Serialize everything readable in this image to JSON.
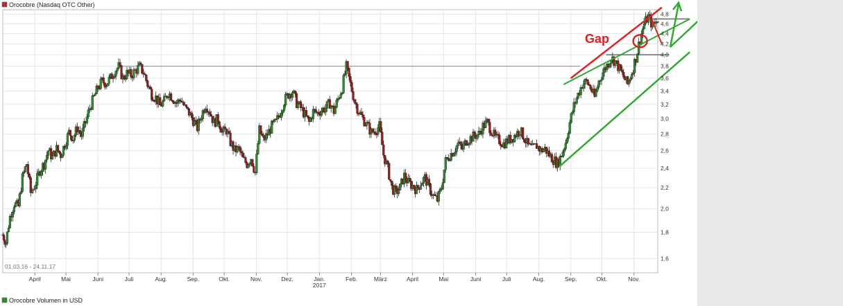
{
  "chart_title": "Orocobre (Nasdaq OTC Other)",
  "volume_title": "Orocobre Volumen in USD",
  "date_range": "01.03.16 - 24.11.17",
  "annotation_gap": "Gap",
  "colors": {
    "up_candle": "#2e8b2e",
    "down_candle": "#a01818",
    "resistance_red": "#e02020",
    "support_green": "#2eaa2e",
    "level_gray": "#888888",
    "grid": "#e6e6e6",
    "right_panel": "#e8e8e8"
  },
  "chart_data": {
    "type": "line",
    "price_style": "candlestick",
    "y_scale": "log",
    "ylim": [
      1.5,
      4.9
    ],
    "yticks": [
      1.6,
      1.8,
      2.0,
      2.2,
      2.4,
      2.6,
      2.8,
      3.0,
      3.2,
      3.4,
      3.6,
      3.8,
      4.0,
      4.2,
      4.4,
      4.6,
      4.8
    ],
    "ytick_labels": [
      "1,6",
      "1,8",
      "2,0",
      "2,2",
      "2,4",
      "2,6",
      "2,8",
      "3,0",
      "3,2",
      "3,4",
      "3,6",
      "3,8",
      "4,0",
      "4,2",
      "4,4",
      "4,6",
      "4,8"
    ],
    "xlim": [
      "2016-03-01",
      "2017-11-24"
    ],
    "xticks": [
      {
        "date": "2016-04-01",
        "label": "April"
      },
      {
        "date": "2016-05-01",
        "label": "Mai"
      },
      {
        "date": "2016-06-01",
        "label": "Juni"
      },
      {
        "date": "2016-07-01",
        "label": "Juli"
      },
      {
        "date": "2016-08-01",
        "label": "Aug."
      },
      {
        "date": "2016-09-01",
        "label": "Sep."
      },
      {
        "date": "2016-10-01",
        "label": "Okt."
      },
      {
        "date": "2016-11-01",
        "label": "Nov."
      },
      {
        "date": "2016-12-01",
        "label": "Dez."
      },
      {
        "date": "2017-01-01",
        "label": "Jan.",
        "sublabel": "2017"
      },
      {
        "date": "2017-02-01",
        "label": "Feb."
      },
      {
        "date": "2017-03-01",
        "label": "März"
      },
      {
        "date": "2017-04-01",
        "label": "April"
      },
      {
        "date": "2017-05-01",
        "label": "Mai"
      },
      {
        "date": "2017-06-01",
        "label": "Juni"
      },
      {
        "date": "2017-07-01",
        "label": "Juli"
      },
      {
        "date": "2017-08-01",
        "label": "Aug."
      },
      {
        "date": "2017-09-01",
        "label": "Sep."
      },
      {
        "date": "2017-10-01",
        "label": "Okt."
      },
      {
        "date": "2017-11-01",
        "label": "Nov."
      }
    ],
    "price_points": [
      [
        "2016-03-01",
        1.78
      ],
      [
        "2016-03-04",
        1.72
      ],
      [
        "2016-03-08",
        1.93
      ],
      [
        "2016-03-12",
        2.05
      ],
      [
        "2016-03-16",
        2.02
      ],
      [
        "2016-03-20",
        2.3
      ],
      [
        "2016-03-24",
        2.45
      ],
      [
        "2016-03-28",
        2.15
      ],
      [
        "2016-04-02",
        2.25
      ],
      [
        "2016-04-06",
        2.38
      ],
      [
        "2016-04-10",
        2.45
      ],
      [
        "2016-04-14",
        2.6
      ],
      [
        "2016-04-18",
        2.52
      ],
      [
        "2016-04-22",
        2.62
      ],
      [
        "2016-04-26",
        2.55
      ],
      [
        "2016-04-30",
        2.68
      ],
      [
        "2016-05-04",
        2.82
      ],
      [
        "2016-05-08",
        2.75
      ],
      [
        "2016-05-12",
        2.88
      ],
      [
        "2016-05-16",
        2.78
      ],
      [
        "2016-05-20",
        2.95
      ],
      [
        "2016-05-24",
        3.15
      ],
      [
        "2016-05-28",
        3.3
      ],
      [
        "2016-06-01",
        3.45
      ],
      [
        "2016-06-05",
        3.55
      ],
      [
        "2016-06-09",
        3.52
      ],
      [
        "2016-06-13",
        3.6
      ],
      [
        "2016-06-17",
        3.72
      ],
      [
        "2016-06-21",
        3.79
      ],
      [
        "2016-06-25",
        3.6
      ],
      [
        "2016-06-29",
        3.68
      ],
      [
        "2016-07-03",
        3.65
      ],
      [
        "2016-07-07",
        3.72
      ],
      [
        "2016-07-11",
        3.79
      ],
      [
        "2016-07-15",
        3.7
      ],
      [
        "2016-07-19",
        3.5
      ],
      [
        "2016-07-23",
        3.35
      ],
      [
        "2016-07-27",
        3.3
      ],
      [
        "2016-07-31",
        3.18
      ],
      [
        "2016-08-04",
        3.25
      ],
      [
        "2016-08-08",
        3.38
      ],
      [
        "2016-08-12",
        3.3
      ],
      [
        "2016-08-16",
        3.22
      ],
      [
        "2016-08-20",
        3.28
      ],
      [
        "2016-08-24",
        3.15
      ],
      [
        "2016-08-28",
        3.08
      ],
      [
        "2016-09-01",
        2.98
      ],
      [
        "2016-09-05",
        2.88
      ],
      [
        "2016-09-09",
        3.05
      ],
      [
        "2016-09-13",
        3.2
      ],
      [
        "2016-09-17",
        3.1
      ],
      [
        "2016-09-21",
        2.95
      ],
      [
        "2016-09-25",
        3.0
      ],
      [
        "2016-09-29",
        2.82
      ],
      [
        "2016-10-03",
        2.85
      ],
      [
        "2016-10-07",
        2.7
      ],
      [
        "2016-10-11",
        2.6
      ],
      [
        "2016-10-15",
        2.62
      ],
      [
        "2016-10-19",
        2.5
      ],
      [
        "2016-10-23",
        2.45
      ],
      [
        "2016-10-27",
        2.52
      ],
      [
        "2016-10-31",
        2.35
      ],
      [
        "2016-11-04",
        2.85
      ],
      [
        "2016-11-08",
        2.72
      ],
      [
        "2016-11-12",
        2.8
      ],
      [
        "2016-11-16",
        2.9
      ],
      [
        "2016-11-20",
        2.95
      ],
      [
        "2016-11-24",
        3.08
      ],
      [
        "2016-11-28",
        3.25
      ],
      [
        "2016-12-02",
        3.35
      ],
      [
        "2016-12-06",
        3.4
      ],
      [
        "2016-12-10",
        3.22
      ],
      [
        "2016-12-14",
        3.15
      ],
      [
        "2016-12-18",
        3.05
      ],
      [
        "2016-12-22",
        2.95
      ],
      [
        "2016-12-26",
        3.1
      ],
      [
        "2016-12-30",
        3.08
      ],
      [
        "2017-01-03",
        3.12
      ],
      [
        "2017-01-07",
        3.15
      ],
      [
        "2017-01-11",
        3.22
      ],
      [
        "2017-01-15",
        3.1
      ],
      [
        "2017-01-19",
        3.28
      ],
      [
        "2017-01-23",
        3.45
      ],
      [
        "2017-01-27",
        3.79
      ],
      [
        "2017-01-31",
        3.5
      ],
      [
        "2017-02-04",
        3.25
      ],
      [
        "2017-02-08",
        3.1
      ],
      [
        "2017-02-12",
        3.0
      ],
      [
        "2017-02-16",
        2.92
      ],
      [
        "2017-02-20",
        2.82
      ],
      [
        "2017-02-24",
        2.85
      ],
      [
        "2017-02-28",
        2.9
      ],
      [
        "2017-03-04",
        2.55
      ],
      [
        "2017-03-08",
        2.4
      ],
      [
        "2017-03-12",
        2.2
      ],
      [
        "2017-03-16",
        2.15
      ],
      [
        "2017-03-20",
        2.2
      ],
      [
        "2017-03-24",
        2.32
      ],
      [
        "2017-03-28",
        2.25
      ],
      [
        "2017-04-01",
        2.22
      ],
      [
        "2017-04-05",
        2.18
      ],
      [
        "2017-04-09",
        2.25
      ],
      [
        "2017-04-13",
        2.3
      ],
      [
        "2017-04-17",
        2.2
      ],
      [
        "2017-04-21",
        2.12
      ],
      [
        "2017-04-25",
        2.08
      ],
      [
        "2017-04-29",
        2.2
      ],
      [
        "2017-05-03",
        2.48
      ],
      [
        "2017-05-07",
        2.55
      ],
      [
        "2017-05-11",
        2.6
      ],
      [
        "2017-05-15",
        2.68
      ],
      [
        "2017-05-19",
        2.62
      ],
      [
        "2017-05-23",
        2.72
      ],
      [
        "2017-05-27",
        2.75
      ],
      [
        "2017-05-31",
        2.78
      ],
      [
        "2017-06-04",
        2.8
      ],
      [
        "2017-06-08",
        2.9
      ],
      [
        "2017-06-12",
        2.95
      ],
      [
        "2017-06-16",
        2.85
      ],
      [
        "2017-06-20",
        2.75
      ],
      [
        "2017-06-24",
        2.72
      ],
      [
        "2017-06-28",
        2.68
      ],
      [
        "2017-07-02",
        2.72
      ],
      [
        "2017-07-06",
        2.75
      ],
      [
        "2017-07-10",
        2.8
      ],
      [
        "2017-07-14",
        2.85
      ],
      [
        "2017-07-18",
        2.75
      ],
      [
        "2017-07-22",
        2.65
      ],
      [
        "2017-07-26",
        2.62
      ],
      [
        "2017-07-30",
        2.66
      ],
      [
        "2017-08-03",
        2.6
      ],
      [
        "2017-08-07",
        2.62
      ],
      [
        "2017-08-11",
        2.55
      ],
      [
        "2017-08-15",
        2.5
      ],
      [
        "2017-08-19",
        2.45
      ],
      [
        "2017-08-23",
        2.55
      ],
      [
        "2017-08-27",
        2.7
      ],
      [
        "2017-08-31",
        2.95
      ],
      [
        "2017-09-04",
        3.18
      ],
      [
        "2017-09-08",
        3.35
      ],
      [
        "2017-09-12",
        3.5
      ],
      [
        "2017-09-16",
        3.55
      ],
      [
        "2017-09-20",
        3.45
      ],
      [
        "2017-09-24",
        3.3
      ],
      [
        "2017-09-28",
        3.55
      ],
      [
        "2017-10-02",
        3.7
      ],
      [
        "2017-10-06",
        3.82
      ],
      [
        "2017-10-10",
        3.95
      ],
      [
        "2017-10-14",
        3.88
      ],
      [
        "2017-10-18",
        3.75
      ],
      [
        "2017-10-22",
        3.62
      ],
      [
        "2017-10-26",
        3.5
      ],
      [
        "2017-10-30",
        3.7
      ],
      [
        "2017-11-03",
        3.95
      ],
      [
        "2017-11-07",
        4.3
      ],
      [
        "2017-11-11",
        4.6
      ],
      [
        "2017-11-15",
        4.75
      ],
      [
        "2017-11-19",
        4.55
      ],
      [
        "2017-11-24",
        4.68
      ]
    ],
    "levels": [
      {
        "price": 3.8,
        "from": "2016-06-20",
        "to": "2017-09-10"
      },
      {
        "price": 4.0,
        "from": "2017-10-05",
        "to": "2017-12-05"
      },
      {
        "price": 4.7,
        "from": "2017-11-10",
        "to": "2017-12-25"
      }
    ],
    "trend_lines": [
      {
        "from": [
          "2017-08-21",
          2.42
        ],
        "to": [
          "2017-12-25",
          4.05
        ]
      },
      {
        "from": [
          "2017-08-25",
          3.5
        ],
        "to": [
          "2017-12-25",
          4.7
        ]
      },
      {
        "from": [
          "2017-09-01",
          3.6
        ],
        "to": [
          "2017-11-28",
          4.95
        ]
      },
      {
        "from": [
          "2017-11-18",
          4.7
        ],
        "to": [
          "2017-11-28",
          4.2
        ]
      }
    ],
    "gap_marker": {
      "date": "2017-11-07",
      "price": 4.15
    }
  }
}
